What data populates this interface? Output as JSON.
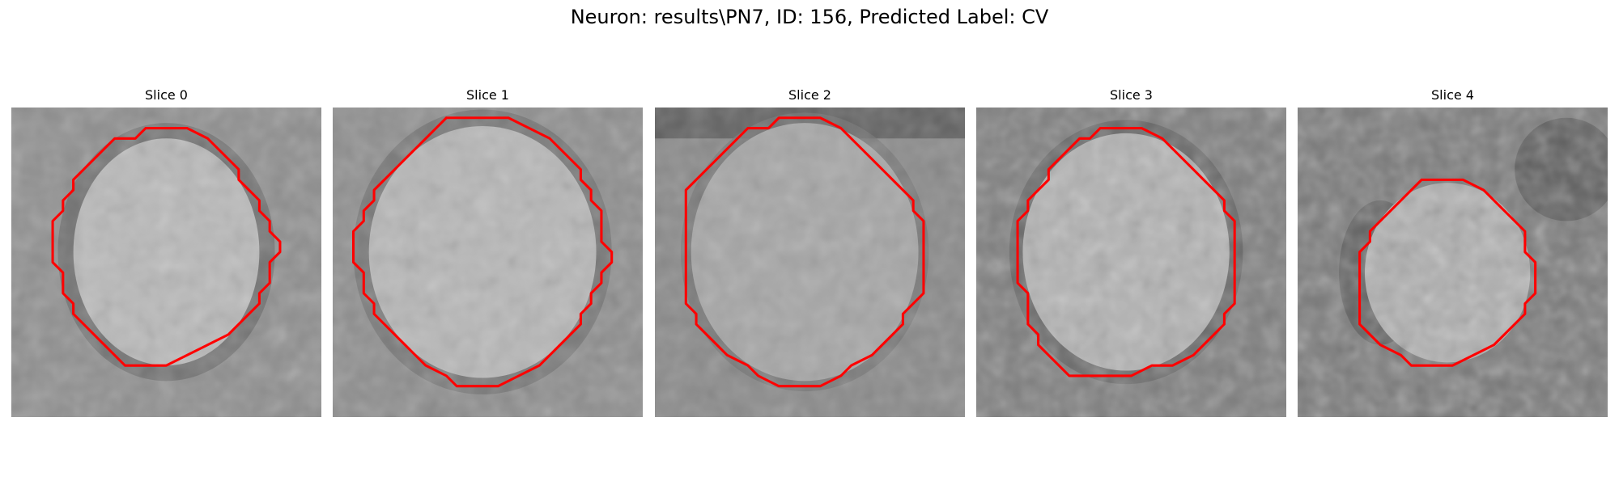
{
  "figure": {
    "title": "Neuron: results\\PN7, ID: 156, Predicted Label: CV"
  },
  "style": {
    "contour_color": "#ff0000"
  },
  "panels": [
    {
      "title": "Slice 0",
      "contour": [
        [
          15.0,
          2.0
        ],
        [
          17.0,
          2.0
        ],
        [
          19.0,
          3.0
        ],
        [
          20.0,
          4.0
        ],
        [
          21.0,
          5.0
        ],
        [
          22.0,
          6.0
        ],
        [
          22.0,
          7.0
        ],
        [
          23.0,
          8.0
        ],
        [
          24.0,
          9.0
        ],
        [
          24.0,
          10.0
        ],
        [
          25.0,
          11.0
        ],
        [
          25.0,
          12.0
        ],
        [
          26.0,
          13.0
        ],
        [
          26.0,
          14.0
        ],
        [
          25.0,
          15.0
        ],
        [
          25.0,
          16.0
        ],
        [
          25.0,
          17.0
        ],
        [
          24.0,
          18.0
        ],
        [
          24.0,
          19.0
        ],
        [
          23.0,
          20.0
        ],
        [
          22.0,
          21.0
        ],
        [
          21.0,
          22.0
        ],
        [
          19.0,
          23.0
        ],
        [
          17.0,
          24.0
        ],
        [
          15.0,
          25.0
        ],
        [
          13.0,
          25.0
        ],
        [
          11.0,
          25.0
        ],
        [
          10.0,
          24.0
        ],
        [
          9.0,
          23.0
        ],
        [
          8.0,
          22.0
        ],
        [
          7.0,
          21.0
        ],
        [
          6.0,
          20.0
        ],
        [
          6.0,
          19.0
        ],
        [
          5.0,
          18.0
        ],
        [
          5.0,
          17.0
        ],
        [
          5.0,
          16.0
        ],
        [
          4.0,
          15.0
        ],
        [
          4.0,
          14.0
        ],
        [
          4.0,
          13.0
        ],
        [
          4.0,
          12.0
        ],
        [
          4.0,
          11.0
        ],
        [
          5.0,
          10.0
        ],
        [
          5.0,
          9.0
        ],
        [
          6.0,
          8.0
        ],
        [
          6.0,
          7.0
        ],
        [
          7.0,
          6.0
        ],
        [
          8.0,
          5.0
        ],
        [
          9.0,
          4.0
        ],
        [
          10.0,
          3.0
        ],
        [
          12.0,
          3.0
        ],
        [
          13.0,
          2.0
        ],
        [
          15.0,
          2.0
        ]
      ]
    },
    {
      "title": "Slice 1",
      "contour": [
        [
          11.0,
          1.0
        ],
        [
          13.0,
          1.0
        ],
        [
          15.0,
          1.0
        ],
        [
          17.0,
          1.0
        ],
        [
          19.0,
          2.0
        ],
        [
          21.0,
          3.0
        ],
        [
          22.0,
          4.0
        ],
        [
          23.0,
          5.0
        ],
        [
          24.0,
          6.0
        ],
        [
          24.0,
          7.0
        ],
        [
          25.0,
          8.0
        ],
        [
          25.0,
          9.0
        ],
        [
          26.0,
          10.0
        ],
        [
          26.0,
          11.0
        ],
        [
          26.0,
          12.0
        ],
        [
          26.0,
          13.0
        ],
        [
          27.0,
          14.0
        ],
        [
          27.0,
          15.0
        ],
        [
          26.0,
          16.0
        ],
        [
          26.0,
          17.0
        ],
        [
          25.0,
          18.0
        ],
        [
          25.0,
          19.0
        ],
        [
          24.0,
          20.0
        ],
        [
          24.0,
          21.0
        ],
        [
          23.0,
          22.0
        ],
        [
          22.0,
          23.0
        ],
        [
          21.0,
          24.0
        ],
        [
          20.0,
          25.0
        ],
        [
          18.0,
          26.0
        ],
        [
          16.0,
          27.0
        ],
        [
          14.0,
          27.0
        ],
        [
          12.0,
          27.0
        ],
        [
          11.0,
          26.0
        ],
        [
          9.0,
          25.0
        ],
        [
          8.0,
          24.0
        ],
        [
          7.0,
          23.0
        ],
        [
          6.0,
          22.0
        ],
        [
          5.0,
          21.0
        ],
        [
          4.0,
          20.0
        ],
        [
          4.0,
          19.0
        ],
        [
          3.0,
          18.0
        ],
        [
          3.0,
          17.0
        ],
        [
          3.0,
          16.0
        ],
        [
          2.0,
          15.0
        ],
        [
          2.0,
          14.0
        ],
        [
          2.0,
          13.0
        ],
        [
          2.0,
          12.0
        ],
        [
          3.0,
          11.0
        ],
        [
          3.0,
          10.0
        ],
        [
          4.0,
          9.0
        ],
        [
          4.0,
          8.0
        ],
        [
          5.0,
          7.0
        ],
        [
          6.0,
          6.0
        ],
        [
          7.0,
          5.0
        ],
        [
          8.0,
          4.0
        ],
        [
          9.0,
          3.0
        ],
        [
          10.0,
          2.0
        ],
        [
          11.0,
          1.0
        ]
      ]
    },
    {
      "title": "Slice 2",
      "contour": [
        [
          14.0,
          1.0
        ],
        [
          16.0,
          1.0
        ],
        [
          18.0,
          2.0
        ],
        [
          19.0,
          3.0
        ],
        [
          20.0,
          4.0
        ],
        [
          21.0,
          5.0
        ],
        [
          22.0,
          6.0
        ],
        [
          23.0,
          7.0
        ],
        [
          24.0,
          8.0
        ],
        [
          25.0,
          9.0
        ],
        [
          25.0,
          10.0
        ],
        [
          26.0,
          11.0
        ],
        [
          26.0,
          12.0
        ],
        [
          26.0,
          13.0
        ],
        [
          26.0,
          14.0
        ],
        [
          26.0,
          15.0
        ],
        [
          26.0,
          16.0
        ],
        [
          26.0,
          17.0
        ],
        [
          26.0,
          18.0
        ],
        [
          25.0,
          19.0
        ],
        [
          24.0,
          20.0
        ],
        [
          24.0,
          21.0
        ],
        [
          23.0,
          22.0
        ],
        [
          22.0,
          23.0
        ],
        [
          21.0,
          24.0
        ],
        [
          19.0,
          25.0
        ],
        [
          18.0,
          26.0
        ],
        [
          16.0,
          27.0
        ],
        [
          14.0,
          27.0
        ],
        [
          12.0,
          27.0
        ],
        [
          10.0,
          26.0
        ],
        [
          9.0,
          25.0
        ],
        [
          7.0,
          24.0
        ],
        [
          6.0,
          23.0
        ],
        [
          5.0,
          22.0
        ],
        [
          4.0,
          21.0
        ],
        [
          4.0,
          20.0
        ],
        [
          3.0,
          19.0
        ],
        [
          3.0,
          18.0
        ],
        [
          3.0,
          17.0
        ],
        [
          3.0,
          16.0
        ],
        [
          3.0,
          15.0
        ],
        [
          3.0,
          14.0
        ],
        [
          3.0,
          13.0
        ],
        [
          3.0,
          12.0
        ],
        [
          3.0,
          11.0
        ],
        [
          3.0,
          10.0
        ],
        [
          3.0,
          9.0
        ],
        [
          3.0,
          8.0
        ],
        [
          4.0,
          7.0
        ],
        [
          5.0,
          6.0
        ],
        [
          6.0,
          5.0
        ],
        [
          7.0,
          4.0
        ],
        [
          8.0,
          3.0
        ],
        [
          9.0,
          2.0
        ],
        [
          10.0,
          2.0
        ],
        [
          11.0,
          2.0
        ],
        [
          12.0,
          1.0
        ],
        [
          14.0,
          1.0
        ]
      ]
    },
    {
      "title": "Slice 3",
      "contour": [
        [
          14.0,
          2.0
        ],
        [
          16.0,
          2.0
        ],
        [
          18.0,
          3.0
        ],
        [
          19.0,
          4.0
        ],
        [
          20.0,
          5.0
        ],
        [
          21.0,
          6.0
        ],
        [
          22.0,
          7.0
        ],
        [
          23.0,
          8.0
        ],
        [
          24.0,
          9.0
        ],
        [
          24.0,
          10.0
        ],
        [
          25.0,
          11.0
        ],
        [
          25.0,
          12.0
        ],
        [
          25.0,
          13.0
        ],
        [
          25.0,
          14.0
        ],
        [
          25.0,
          15.0
        ],
        [
          25.0,
          16.0
        ],
        [
          25.0,
          17.0
        ],
        [
          25.0,
          18.0
        ],
        [
          25.0,
          19.0
        ],
        [
          24.0,
          20.0
        ],
        [
          24.0,
          21.0
        ],
        [
          23.0,
          22.0
        ],
        [
          22.0,
          23.0
        ],
        [
          21.0,
          24.0
        ],
        [
          19.0,
          25.0
        ],
        [
          17.0,
          25.0
        ],
        [
          15.0,
          26.0
        ],
        [
          13.0,
          26.0
        ],
        [
          11.0,
          26.0
        ],
        [
          9.0,
          26.0
        ],
        [
          8.0,
          25.0
        ],
        [
          7.0,
          24.0
        ],
        [
          6.0,
          23.0
        ],
        [
          6.0,
          22.0
        ],
        [
          5.0,
          21.0
        ],
        [
          5.0,
          20.0
        ],
        [
          5.0,
          19.0
        ],
        [
          5.0,
          18.0
        ],
        [
          4.0,
          17.0
        ],
        [
          4.0,
          16.0
        ],
        [
          4.0,
          15.0
        ],
        [
          4.0,
          14.0
        ],
        [
          4.0,
          13.0
        ],
        [
          4.0,
          12.0
        ],
        [
          4.0,
          11.0
        ],
        [
          5.0,
          10.0
        ],
        [
          5.0,
          9.0
        ],
        [
          6.0,
          8.0
        ],
        [
          7.0,
          7.0
        ],
        [
          7.0,
          6.0
        ],
        [
          8.0,
          5.0
        ],
        [
          9.0,
          4.0
        ],
        [
          10.0,
          3.0
        ],
        [
          11.0,
          3.0
        ],
        [
          12.0,
          2.0
        ],
        [
          14.0,
          2.0
        ]
      ]
    },
    {
      "title": "Slice 4",
      "contour": [
        [
          12.0,
          7.0
        ],
        [
          14.0,
          7.0
        ],
        [
          16.0,
          7.0
        ],
        [
          18.0,
          8.0
        ],
        [
          19.0,
          9.0
        ],
        [
          20.0,
          10.0
        ],
        [
          21.0,
          11.0
        ],
        [
          22.0,
          12.0
        ],
        [
          22.0,
          13.0
        ],
        [
          22.0,
          14.0
        ],
        [
          23.0,
          15.0
        ],
        [
          23.0,
          16.0
        ],
        [
          23.0,
          17.0
        ],
        [
          23.0,
          18.0
        ],
        [
          22.0,
          19.0
        ],
        [
          22.0,
          20.0
        ],
        [
          21.0,
          21.0
        ],
        [
          20.0,
          22.0
        ],
        [
          19.0,
          23.0
        ],
        [
          17.0,
          24.0
        ],
        [
          15.0,
          25.0
        ],
        [
          13.0,
          25.0
        ],
        [
          11.0,
          25.0
        ],
        [
          10.0,
          24.0
        ],
        [
          8.0,
          23.0
        ],
        [
          7.0,
          22.0
        ],
        [
          6.0,
          21.0
        ],
        [
          6.0,
          20.0
        ],
        [
          6.0,
          19.0
        ],
        [
          6.0,
          18.0
        ],
        [
          6.0,
          17.0
        ],
        [
          6.0,
          16.0
        ],
        [
          6.0,
          15.0
        ],
        [
          6.0,
          14.0
        ],
        [
          7.0,
          13.0
        ],
        [
          7.0,
          12.0
        ],
        [
          8.0,
          11.0
        ],
        [
          9.0,
          10.0
        ],
        [
          10.0,
          9.0
        ],
        [
          11.0,
          8.0
        ],
        [
          12.0,
          7.0
        ]
      ]
    }
  ]
}
